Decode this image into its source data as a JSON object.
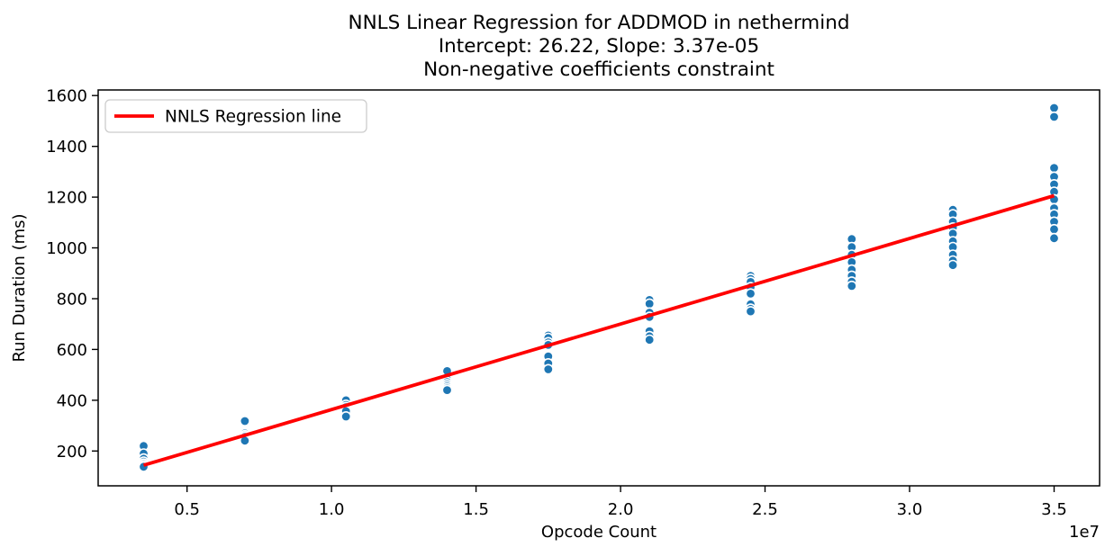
{
  "figure": {
    "background": "#ffffff",
    "frame_color": "#000000"
  },
  "chart_data": {
    "type": "scatter",
    "title": "NNLS Linear Regression for ADDMOD in nethermind",
    "subtitle_lines": [
      "Intercept: 26.22, Slope: 3.37e-05",
      "Non-negative coefficients constraint"
    ],
    "xlabel": "Opcode Count",
    "ylabel": "Run Duration (ms)",
    "x_scale_offset_label": "1e7",
    "grid": false,
    "xlim": [
      1925000,
      36575000
    ],
    "ylim": [
      63,
      1622
    ],
    "x_ticks": [
      5000000,
      10000000,
      15000000,
      20000000,
      25000000,
      30000000,
      35000000
    ],
    "x_tick_labels": [
      "0.5",
      "1.0",
      "1.5",
      "2.0",
      "2.5",
      "3.0",
      "3.5"
    ],
    "y_ticks": [
      200,
      400,
      600,
      800,
      1000,
      1200,
      1400,
      1600
    ],
    "y_tick_labels": [
      "200",
      "400",
      "600",
      "800",
      "1000",
      "1200",
      "1400",
      "1600"
    ],
    "legend": {
      "position": "upper left",
      "entries": [
        {
          "label": "NNLS Regression line",
          "color": "#ff0000",
          "type": "line"
        }
      ]
    },
    "series": [
      {
        "name": "run-duration-samples",
        "type": "scatter",
        "color": "#1f77b4",
        "edge_color": "#ffffff",
        "marker_radius": 5.2,
        "clusters": [
          {
            "x": 3500000,
            "y": [
              220,
              190,
              170,
              158,
              150,
              144,
              138
            ]
          },
          {
            "x": 7000000,
            "y": [
              318,
              270,
              262,
              256,
              248,
              241
            ]
          },
          {
            "x": 10500000,
            "y": [
              400,
              382,
              373,
              365,
              357,
              336
            ]
          },
          {
            "x": 14000000,
            "y": [
              515,
              482,
              472,
              463,
              455,
              447,
              440
            ]
          },
          {
            "x": 17500000,
            "y": [
              655,
              645,
              628,
              618,
              573,
              545,
              522
            ]
          },
          {
            "x": 21000000,
            "y": [
              795,
              780,
              745,
              728,
              672,
              652,
              638
            ]
          },
          {
            "x": 24500000,
            "y": [
              890,
              878,
              866,
              845,
              820,
              778,
              760,
              750
            ]
          },
          {
            "x": 28000000,
            "y": [
              1035,
              1003,
              973,
              944,
              914,
              890,
              867,
              850
            ]
          },
          {
            "x": 31500000,
            "y": [
              1150,
              1132,
              1103,
              1080,
              1056,
              1026,
              1003,
              973,
              950,
              932
            ]
          },
          {
            "x": 35000000,
            "y": [
              1551,
              1516,
              1315,
              1280,
              1250,
              1221,
              1191,
              1156,
              1132,
              1103,
              1073,
              1038
            ]
          }
        ]
      },
      {
        "name": "NNLS Regression line",
        "type": "line",
        "color": "#ff0000",
        "intercept": 26.22,
        "slope": 3.37e-05,
        "x_range": [
          3500000,
          35000000
        ],
        "linewidth": 3.8
      }
    ]
  }
}
